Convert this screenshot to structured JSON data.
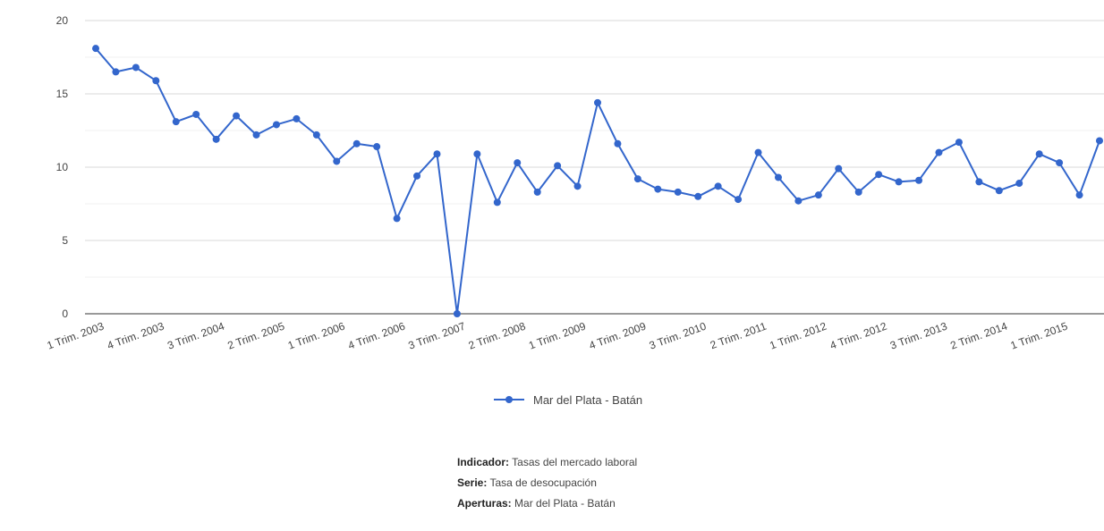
{
  "chart_data": {
    "type": "line",
    "ylim": [
      0,
      20
    ],
    "y_ticks": [
      "0",
      "5",
      "10",
      "15",
      "20"
    ],
    "grid": true,
    "legend_position": "bottom-center",
    "x_tick_labels": [
      "1 Trim. 2003",
      "4 Trim. 2003",
      "3 Trim. 2004",
      "2 Trim. 2005",
      "1 Trim. 2006",
      "4 Trim. 2006",
      "3 Trim. 2007",
      "2 Trim. 2008",
      "1 Trim. 2009",
      "4 Trim. 2009",
      "3 Trim. 2010",
      "2 Trim. 2011",
      "1 Trim. 2012",
      "4 Trim. 2012",
      "3 Trim. 2013",
      "2 Trim. 2014",
      "1 Trim. 2015"
    ],
    "x": [
      "1 Trim. 2003",
      "2 Trim. 2003",
      "3 Trim. 2003",
      "4 Trim. 2003",
      "1 Trim. 2004",
      "2 Trim. 2004",
      "3 Trim. 2004",
      "4 Trim. 2004",
      "1 Trim. 2005",
      "2 Trim. 2005",
      "3 Trim. 2005",
      "4 Trim. 2005",
      "1 Trim. 2006",
      "2 Trim. 2006",
      "3 Trim. 2006",
      "4 Trim. 2006",
      "1 Trim. 2007",
      "2 Trim. 2007",
      "3 Trim. 2007",
      "4 Trim. 2007",
      "1 Trim. 2008",
      "2 Trim. 2008",
      "3 Trim. 2008",
      "4 Trim. 2008",
      "1 Trim. 2009",
      "2 Trim. 2009",
      "3 Trim. 2009",
      "4 Trim. 2009",
      "1 Trim. 2010",
      "2 Trim. 2010",
      "3 Trim. 2010",
      "4 Trim. 2010",
      "1 Trim. 2011",
      "2 Trim. 2011",
      "3 Trim. 2011",
      "4 Trim. 2011",
      "1 Trim. 2012",
      "2 Trim. 2012",
      "3 Trim. 2012",
      "4 Trim. 2012",
      "1 Trim. 2013",
      "2 Trim. 2013",
      "3 Trim. 2013",
      "4 Trim. 2013",
      "1 Trim. 2014",
      "2 Trim. 2014",
      "3 Trim. 2014",
      "4 Trim. 2014",
      "1 Trim. 2015",
      "2 Trim. 2015",
      "3 Trim. 2015"
    ],
    "series": [
      {
        "name": "Mar del Plata - Batán",
        "color": "#3366cc",
        "values": [
          18.1,
          16.5,
          16.8,
          15.9,
          13.1,
          13.6,
          11.9,
          13.5,
          12.2,
          12.9,
          13.3,
          12.2,
          10.4,
          11.6,
          11.4,
          6.5,
          9.4,
          10.9,
          0.0,
          10.9,
          7.6,
          10.3,
          8.3,
          10.1,
          8.7,
          14.4,
          11.6,
          9.2,
          8.5,
          8.3,
          8.0,
          8.7,
          7.8,
          11.0,
          9.3,
          7.7,
          8.1,
          9.9,
          8.3,
          9.5,
          9.0,
          9.1,
          11.0,
          11.7,
          9.0,
          8.4,
          8.9,
          10.9,
          10.3,
          8.1,
          11.8
        ]
      }
    ]
  },
  "meta": {
    "indicador_label": "Indicador:",
    "indicador_value": "Tasas del mercado laboral",
    "serie_label": "Serie:",
    "serie_value": "Tasa de desocupación",
    "aperturas_label": "Aperturas:",
    "aperturas_value": "Mar del Plata - Batán"
  }
}
